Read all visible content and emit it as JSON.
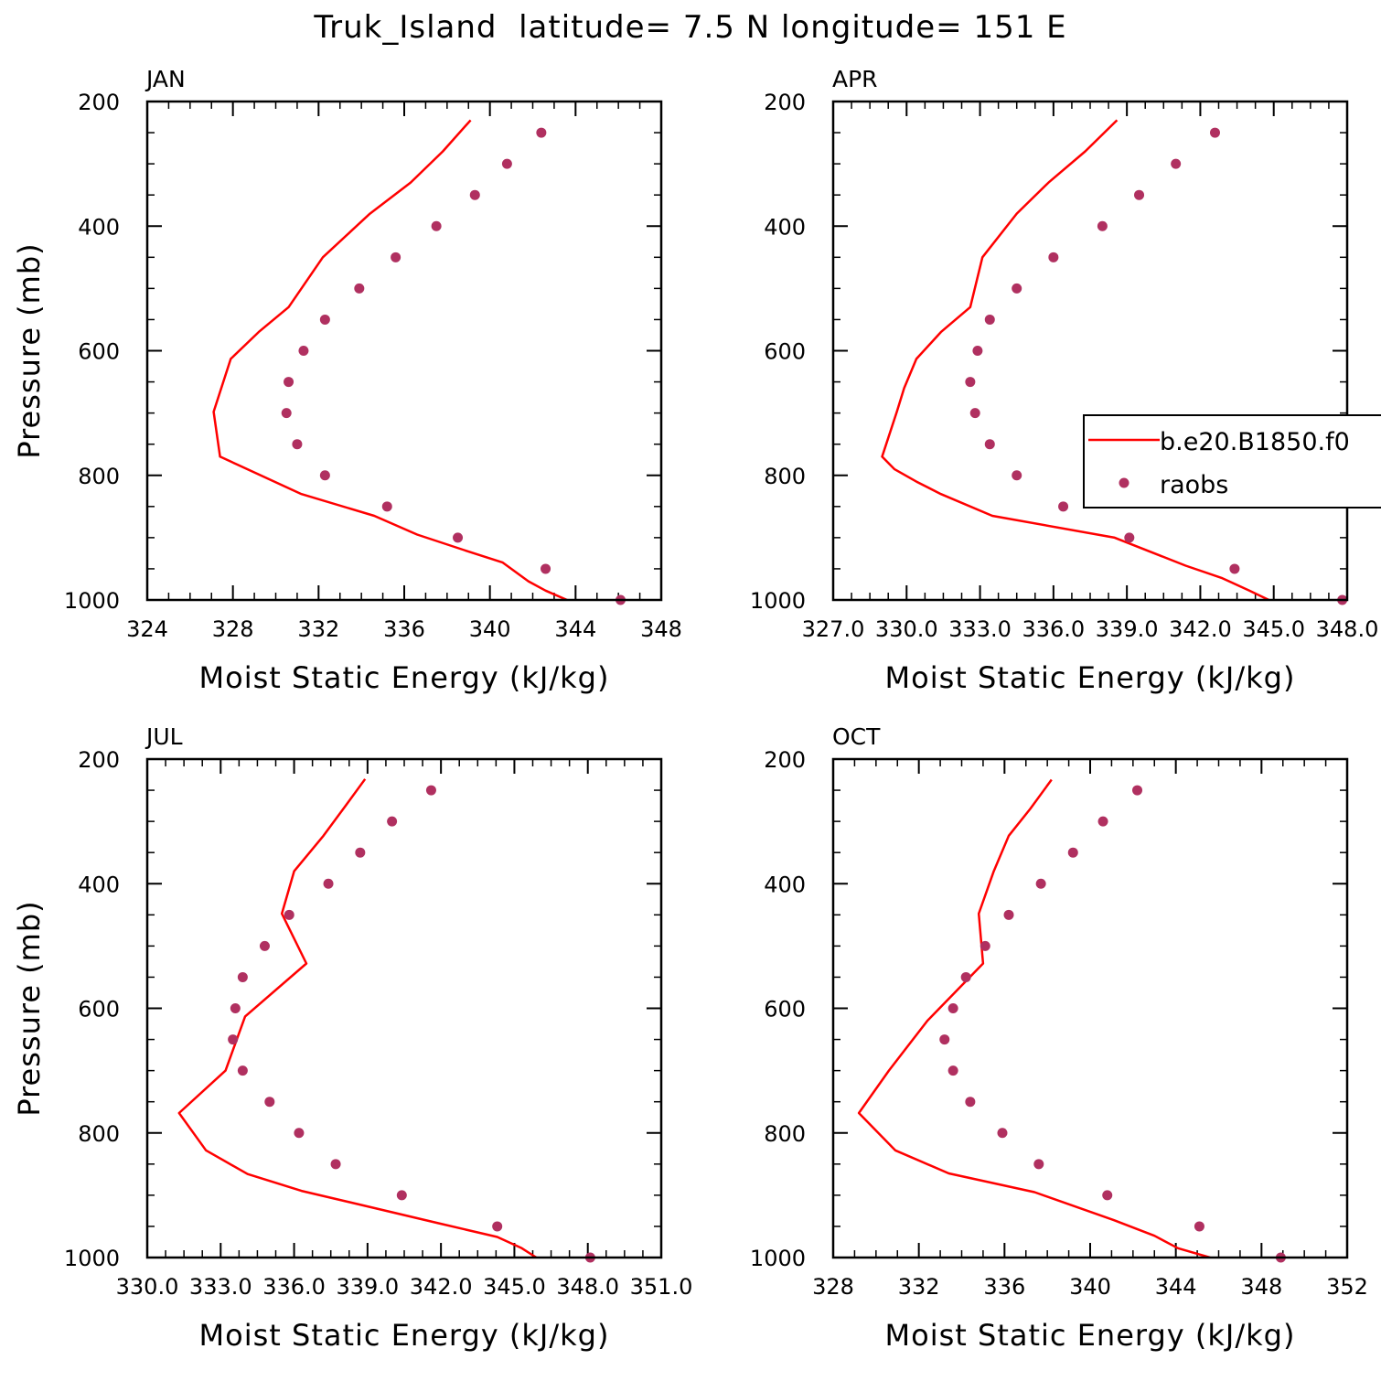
{
  "title": "Truk_Island  latitude= 7.5 N longitude= 151 E",
  "colors": {
    "model": "#ff0000",
    "raobs": "#b03060"
  },
  "legend": {
    "model_label": "b.e20.B1850.f0",
    "raobs_label": "raobs"
  },
  "chart_data": [
    {
      "type": "line",
      "title": "JAN",
      "xlabel": "Moist Static Energy (kJ/kg)",
      "ylabel": "Pressure (mb)",
      "xlim": [
        324,
        348
      ],
      "ylim": [
        1000,
        200
      ],
      "xticks": [
        324,
        328,
        332,
        336,
        340,
        344,
        348
      ],
      "xtick_labels": [
        "324",
        "328",
        "332",
        "336",
        "340",
        "344",
        "348"
      ],
      "yticks": [
        200,
        400,
        600,
        800,
        1000
      ],
      "ytick_labels": [
        "200",
        "400",
        "600",
        "800",
        "1000"
      ],
      "series": [
        {
          "name": "b.e20.B1850.f0",
          "kind": "line",
          "x": [
            339.1,
            337.8,
            336.3,
            334.4,
            332.2,
            330.6,
            329.2,
            327.9,
            327.1,
            327.4,
            331.2,
            334.6,
            336.6,
            338.8,
            340.6,
            341.8,
            342.6,
            343.6
          ],
          "y": [
            230,
            280,
            330,
            380,
            450,
            530,
            570,
            613,
            698,
            770,
            830,
            865,
            895,
            920,
            940,
            970,
            985,
            1000
          ]
        },
        {
          "name": "raobs",
          "kind": "scatter",
          "x": [
            342.4,
            340.8,
            339.3,
            337.5,
            335.6,
            333.9,
            332.3,
            331.3,
            330.6,
            330.5,
            331.0,
            332.3,
            335.2,
            338.5,
            342.6,
            346.1
          ],
          "y": [
            250,
            300,
            350,
            400,
            450,
            500,
            550,
            600,
            650,
            700,
            750,
            800,
            850,
            900,
            950,
            1000
          ]
        }
      ]
    },
    {
      "type": "line",
      "title": "APR",
      "xlabel": "Moist Static Energy (kJ/kg)",
      "ylabel": "",
      "xlim": [
        327,
        348
      ],
      "ylim": [
        1000,
        200
      ],
      "xticks": [
        327,
        330,
        333,
        336,
        339,
        342,
        345,
        348
      ],
      "xtick_labels": [
        "327.0",
        "330.0",
        "333.0",
        "336.0",
        "339.0",
        "342.0",
        "345.0",
        "348.0"
      ],
      "yticks": [
        200,
        400,
        600,
        800,
        1000
      ],
      "ytick_labels": [
        "200",
        "400",
        "600",
        "800",
        "1000"
      ],
      "series": [
        {
          "name": "b.e20.B1850.f0",
          "kind": "line",
          "x": [
            338.6,
            337.3,
            335.8,
            334.5,
            333.1,
            332.6,
            331.4,
            330.4,
            329.9,
            329.6,
            329.0,
            329.5,
            330.4,
            331.4,
            333.5,
            338.5,
            341.4,
            342.9,
            344.0,
            344.8
          ],
          "y": [
            230,
            280,
            330,
            380,
            450,
            530,
            570,
            613,
            660,
            698,
            770,
            790,
            810,
            830,
            865,
            900,
            945,
            965,
            985,
            1000
          ]
        },
        {
          "name": "raobs",
          "kind": "scatter",
          "x": [
            342.6,
            341.0,
            339.5,
            338.0,
            336.0,
            334.5,
            333.4,
            332.9,
            332.6,
            332.8,
            333.4,
            334.5,
            336.4,
            339.1,
            343.4,
            347.8
          ],
          "y": [
            250,
            300,
            350,
            400,
            450,
            500,
            550,
            600,
            650,
            700,
            750,
            800,
            850,
            900,
            950,
            1000
          ]
        }
      ]
    },
    {
      "type": "line",
      "title": "JUL",
      "xlabel": "Moist Static Energy (kJ/kg)",
      "ylabel": "Pressure (mb)",
      "xlim": [
        330,
        351
      ],
      "ylim": [
        1000,
        200
      ],
      "xticks": [
        330,
        333,
        336,
        339,
        342,
        345,
        348,
        351
      ],
      "xtick_labels": [
        "330.0",
        "333.0",
        "336.0",
        "339.0",
        "342.0",
        "345.0",
        "348.0",
        "351.0"
      ],
      "yticks": [
        200,
        400,
        600,
        800,
        1000
      ],
      "ytick_labels": [
        "200",
        "400",
        "600",
        "800",
        "1000"
      ],
      "series": [
        {
          "name": "b.e20.B1850.f0",
          "kind": "line",
          "x": [
            338.9,
            338.1,
            337.2,
            336.0,
            335.5,
            336.5,
            334.0,
            333.2,
            331.3,
            332.4,
            334.1,
            336.3,
            339.0,
            341.9,
            344.3,
            345.3,
            345.9
          ],
          "y": [
            232,
            275,
            323,
            380,
            448,
            528,
            613,
            700,
            768,
            828,
            866,
            893,
            918,
            945,
            967,
            985,
            1000
          ]
        },
        {
          "name": "raobs",
          "kind": "scatter",
          "x": [
            341.6,
            340.0,
            338.7,
            337.4,
            335.8,
            334.8,
            333.9,
            333.6,
            333.5,
            333.9,
            335.0,
            336.2,
            337.7,
            340.4,
            344.3,
            348.1
          ],
          "y": [
            250,
            300,
            350,
            400,
            450,
            500,
            550,
            600,
            650,
            700,
            750,
            800,
            850,
            900,
            950,
            1000
          ]
        }
      ]
    },
    {
      "type": "line",
      "title": "OCT",
      "xlabel": "Moist Static Energy (kJ/kg)",
      "ylabel": "",
      "xlim": [
        328,
        352
      ],
      "ylim": [
        1000,
        200
      ],
      "xticks": [
        328,
        332,
        336,
        340,
        344,
        348,
        352
      ],
      "xtick_labels": [
        "328",
        "332",
        "336",
        "340",
        "344",
        "348",
        "352"
      ],
      "yticks": [
        200,
        400,
        600,
        800,
        1000
      ],
      "ytick_labels": [
        "200",
        "400",
        "600",
        "800",
        "1000"
      ],
      "series": [
        {
          "name": "b.e20.B1850.f0",
          "kind": "line",
          "x": [
            338.2,
            337.2,
            336.2,
            335.5,
            334.8,
            335.0,
            332.4,
            330.6,
            329.2,
            330.9,
            333.4,
            337.4,
            341.1,
            343.0,
            344.1,
            345.6
          ],
          "y": [
            233,
            280,
            323,
            380,
            448,
            528,
            620,
            700,
            768,
            828,
            865,
            895,
            940,
            965,
            985,
            1000
          ]
        },
        {
          "name": "raobs",
          "kind": "scatter",
          "x": [
            342.2,
            340.6,
            339.2,
            337.7,
            336.2,
            335.1,
            334.2,
            333.6,
            333.2,
            333.6,
            334.4,
            335.9,
            337.6,
            340.8,
            345.1,
            348.9
          ],
          "y": [
            250,
            300,
            350,
            400,
            450,
            500,
            550,
            600,
            650,
            700,
            750,
            800,
            850,
            900,
            950,
            1000
          ]
        }
      ]
    }
  ]
}
